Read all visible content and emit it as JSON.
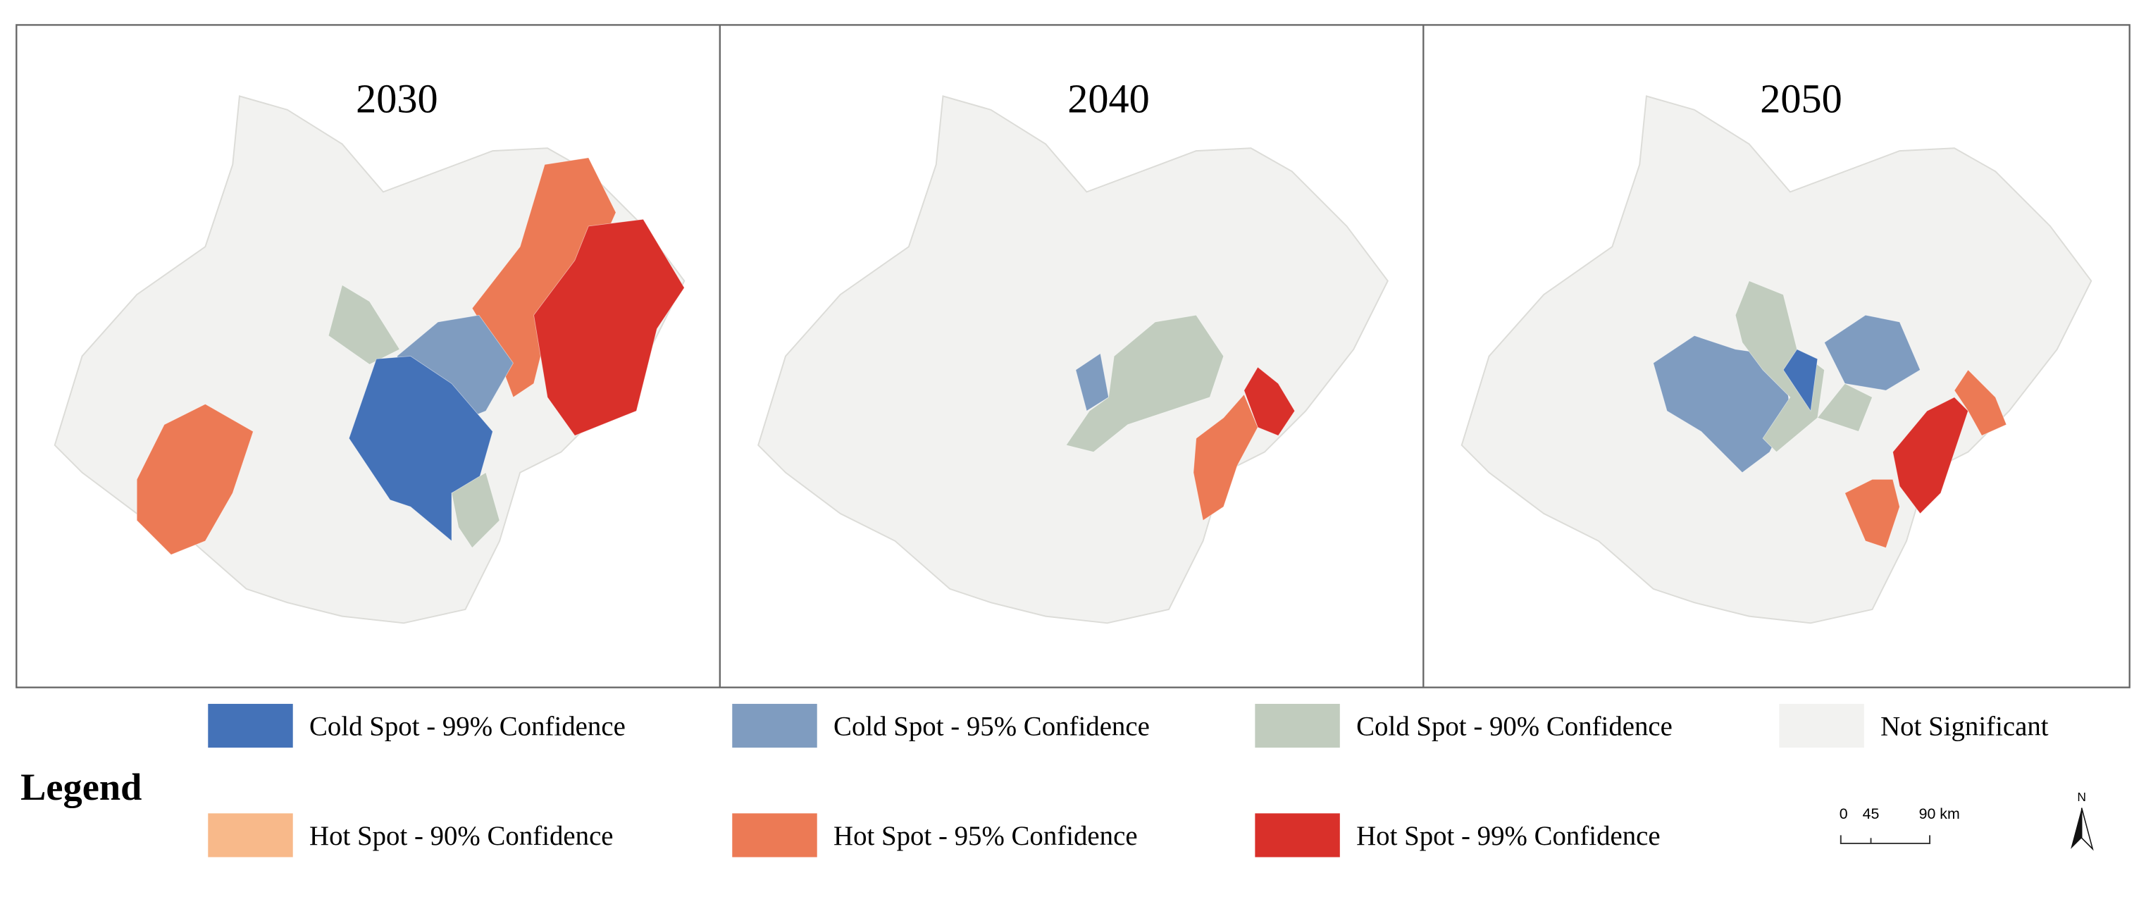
{
  "panels": [
    {
      "title": "2030"
    },
    {
      "title": "2040"
    },
    {
      "title": "2050"
    }
  ],
  "legend": {
    "title": "Legend",
    "items": [
      {
        "label": "Cold Spot - 99% Confidence",
        "color": "#4472b8"
      },
      {
        "label": "Cold Spot - 95% Confidence",
        "color": "#7f9cc0"
      },
      {
        "label": "Cold Spot - 90% Confidence",
        "color": "#c1ccbe"
      },
      {
        "label": "Not Significant",
        "color": "#f2f2f0"
      },
      {
        "label": "Hot Spot - 90% Confidence",
        "color": "#f8b98a"
      },
      {
        "label": "Hot Spot - 95% Confidence",
        "color": "#ec7a55"
      },
      {
        "label": "Hot Spot - 99% Confidence",
        "color": "#d9302a"
      }
    ]
  },
  "scale_bar": {
    "labels": [
      "0",
      "45",
      "90 km"
    ]
  },
  "north_arrow": "N"
}
